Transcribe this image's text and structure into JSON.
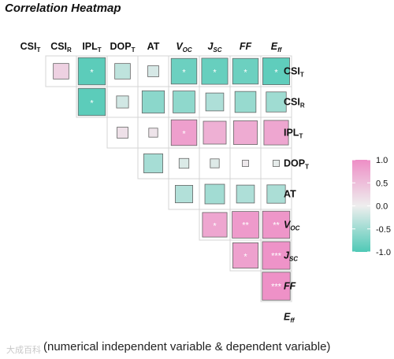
{
  "title": "Correlation Heatmap",
  "caption": "(numerical independent variable & dependent variable)",
  "watermark": "大成百科",
  "colors": {
    "positive": "#ee8ec6",
    "neutral": "#eeeeee",
    "negative": "#4fc9b6"
  },
  "chart_data": {
    "type": "heatmap",
    "variables": [
      {
        "name": "CSI",
        "sub": "T",
        "italic": false
      },
      {
        "name": "CSI",
        "sub": "R",
        "italic": false
      },
      {
        "name": "IPL",
        "sub": "T",
        "italic": false
      },
      {
        "name": "DOP",
        "sub": "T",
        "italic": false
      },
      {
        "name": "AT",
        "sub": "",
        "italic": false
      },
      {
        "name": "V",
        "sub": "OC",
        "italic": true
      },
      {
        "name": "J",
        "sub": "SC",
        "italic": true
      },
      {
        "name": "FF",
        "sub": "",
        "italic": true
      },
      {
        "name": "E",
        "sub": "ff",
        "italic": true
      }
    ],
    "cells": [
      {
        "r": 0,
        "c": 1,
        "v": 0.3,
        "sig": ""
      },
      {
        "r": 0,
        "c": 2,
        "v": -0.92,
        "sig": "*"
      },
      {
        "r": 0,
        "c": 3,
        "v": -0.3,
        "sig": ""
      },
      {
        "r": 0,
        "c": 4,
        "v": -0.15,
        "sig": ""
      },
      {
        "r": 0,
        "c": 5,
        "v": -0.82,
        "sig": "*"
      },
      {
        "r": 0,
        "c": 6,
        "v": -0.85,
        "sig": "*"
      },
      {
        "r": 0,
        "c": 7,
        "v": -0.82,
        "sig": "*"
      },
      {
        "r": 0,
        "c": 8,
        "v": -0.9,
        "sig": "*"
      },
      {
        "r": 1,
        "c": 2,
        "v": -0.92,
        "sig": "*"
      },
      {
        "r": 1,
        "c": 3,
        "v": -0.18,
        "sig": ""
      },
      {
        "r": 1,
        "c": 4,
        "v": -0.62,
        "sig": ""
      },
      {
        "r": 1,
        "c": 5,
        "v": -0.6,
        "sig": ""
      },
      {
        "r": 1,
        "c": 6,
        "v": -0.4,
        "sig": ""
      },
      {
        "r": 1,
        "c": 7,
        "v": -0.55,
        "sig": ""
      },
      {
        "r": 1,
        "c": 8,
        "v": -0.5,
        "sig": ""
      },
      {
        "r": 2,
        "c": 3,
        "v": 0.15,
        "sig": ""
      },
      {
        "r": 2,
        "c": 4,
        "v": 0.1,
        "sig": ""
      },
      {
        "r": 2,
        "c": 5,
        "v": 0.82,
        "sig": "*"
      },
      {
        "r": 2,
        "c": 6,
        "v": 0.65,
        "sig": ""
      },
      {
        "r": 2,
        "c": 7,
        "v": 0.7,
        "sig": ""
      },
      {
        "r": 2,
        "c": 8,
        "v": 0.75,
        "sig": ""
      },
      {
        "r": 3,
        "c": 4,
        "v": -0.45,
        "sig": ""
      },
      {
        "r": 3,
        "c": 5,
        "v": -0.12,
        "sig": ""
      },
      {
        "r": 3,
        "c": 6,
        "v": -0.1,
        "sig": ""
      },
      {
        "r": 3,
        "c": 7,
        "v": 0.05,
        "sig": ""
      },
      {
        "r": 3,
        "c": 8,
        "v": -0.05,
        "sig": ""
      },
      {
        "r": 4,
        "c": 5,
        "v": -0.38,
        "sig": ""
      },
      {
        "r": 4,
        "c": 6,
        "v": -0.48,
        "sig": ""
      },
      {
        "r": 4,
        "c": 7,
        "v": -0.4,
        "sig": ""
      },
      {
        "r": 4,
        "c": 8,
        "v": -0.42,
        "sig": ""
      },
      {
        "r": 5,
        "c": 6,
        "v": 0.75,
        "sig": "*"
      },
      {
        "r": 5,
        "c": 7,
        "v": 0.88,
        "sig": "**"
      },
      {
        "r": 5,
        "c": 8,
        "v": 0.92,
        "sig": "**"
      },
      {
        "r": 6,
        "c": 7,
        "v": 0.8,
        "sig": "*"
      },
      {
        "r": 6,
        "c": 8,
        "v": 0.95,
        "sig": "***"
      },
      {
        "r": 7,
        "c": 8,
        "v": 0.97,
        "sig": "***"
      }
    ],
    "legend": {
      "range": [
        -1.0,
        1.0
      ],
      "ticks": [
        "1.0",
        "0.5",
        "0.0",
        "-0.5",
        "-1.0"
      ],
      "placement": "right"
    }
  }
}
